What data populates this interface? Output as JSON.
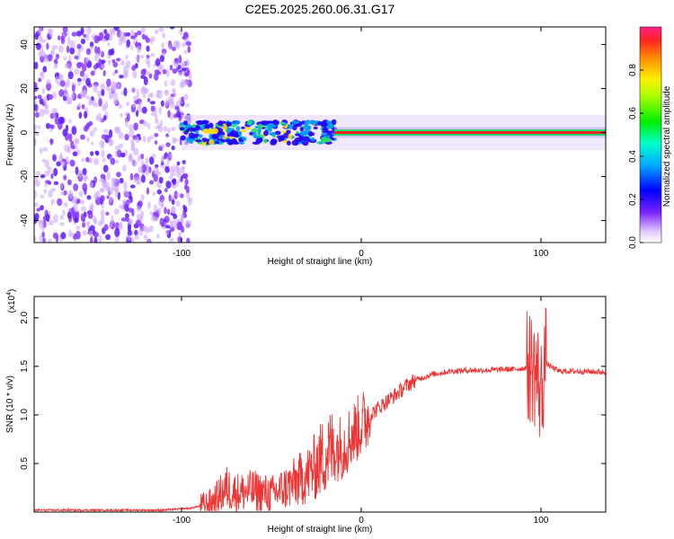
{
  "title": "C2E5.2025.260.06.31.G17",
  "colors": {
    "snr_line": "#ee3333",
    "axis": "#000000",
    "spectrum_strong": "#ee2222",
    "spectrum_mid": "#22dd66",
    "spectrum_low": "#2200ff",
    "spectrum_faint": "#cfa8ff"
  },
  "chart_data": [
    {
      "type": "heatmap",
      "title": "C2E5.2025.260.06.31.G17",
      "xlabel": "Height of straight line (km)",
      "ylabel": "Frequency (Hz)",
      "xlim": [
        -182,
        136
      ],
      "ylim": [
        -50,
        48
      ],
      "xticks": [
        -100,
        0,
        100
      ],
      "xtick_labels": [
        "-100",
        "0",
        "100"
      ],
      "yticks": [
        -40,
        -20,
        0,
        20,
        40
      ],
      "ytick_labels": [
        "-40",
        "-20",
        "0",
        "20",
        "40"
      ],
      "colorbar": {
        "label": "Normalized spectral amplitude",
        "range": [
          0,
          1
        ],
        "ticks": [
          0.0,
          0.2,
          0.4,
          0.6,
          0.8
        ],
        "tick_labels": [
          "0.0",
          "0.2",
          "0.4",
          "0.6",
          "0.8"
        ]
      },
      "regions": [
        {
          "name": "noise",
          "x_range": [
            -182,
            -100
          ],
          "freq_range": [
            -50,
            48
          ],
          "amplitude": 0.15
        },
        {
          "name": "transition",
          "x_range": [
            -100,
            -15
          ],
          "freq_range": [
            -8,
            8
          ],
          "amplitude": 0.35
        },
        {
          "name": "tone",
          "x_range": [
            -15,
            136
          ],
          "freq": 0,
          "amplitude": 0.85
        }
      ]
    },
    {
      "type": "line",
      "xlabel": "Height of straight line (km)",
      "ylabel": "SNR (10 * v/v)",
      "yscale_label": "(x10",
      "yscale_exp": "4",
      "yscale_close": ")",
      "xlim": [
        -182,
        136
      ],
      "ylim": [
        0,
        2.22
      ],
      "xticks": [
        -100,
        0,
        100
      ],
      "xtick_labels": [
        "-100",
        "0",
        "100"
      ],
      "yticks": [
        0.5,
        1.0,
        1.5,
        2.0
      ],
      "ytick_labels": [
        "0.5",
        "1.0",
        "1.5",
        "2.0"
      ],
      "series": [
        {
          "name": "SNR",
          "x": [
            -182,
            -140,
            -110,
            -95,
            -85,
            -80,
            -75,
            -70,
            -60,
            -50,
            -40,
            -30,
            -25,
            -20,
            -15,
            -10,
            -5,
            0,
            5,
            10,
            15,
            20,
            25,
            30,
            40,
            50,
            60,
            70,
            80,
            85,
            90,
            95,
            98,
            100,
            102,
            105,
            110,
            120,
            136
          ],
          "values": [
            0.02,
            0.02,
            0.02,
            0.04,
            0.08,
            0.15,
            0.25,
            0.2,
            0.22,
            0.18,
            0.27,
            0.38,
            0.48,
            0.6,
            0.65,
            0.68,
            0.8,
            0.9,
            1.0,
            1.08,
            1.15,
            1.22,
            1.3,
            1.36,
            1.42,
            1.45,
            1.46,
            1.46,
            1.47,
            1.47,
            1.48,
            1.5,
            1.4,
            1.2,
            1.55,
            1.5,
            1.45,
            1.45,
            1.44
          ]
        }
      ]
    }
  ]
}
